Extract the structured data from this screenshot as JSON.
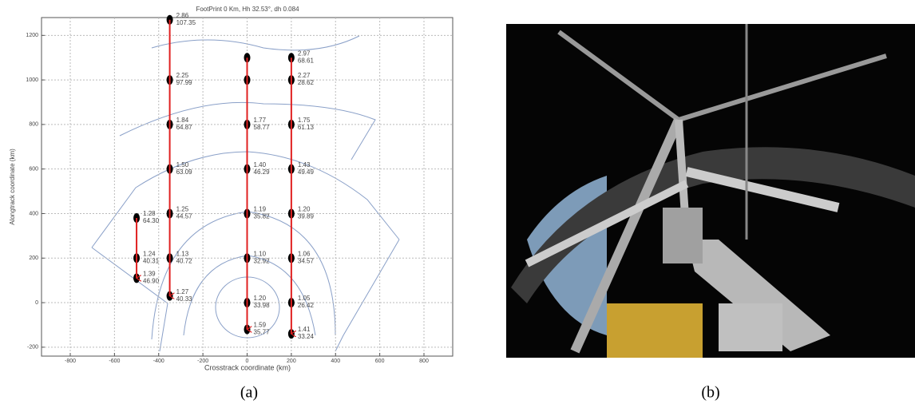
{
  "chart_data": {
    "type": "scatter",
    "title": "FootPrint 0 Km, Hh 32.53°, dh 0.084",
    "x_label": "Crosstrack coordinate (km)",
    "y_label": "Alongtrack coordinate (km)",
    "xlim": [
      -930,
      930
    ],
    "ylim": [
      -240,
      1280
    ],
    "xticks": [
      -800,
      -600,
      -400,
      -200,
      0,
      200,
      400,
      600,
      800
    ],
    "yticks": [
      -200,
      0,
      200,
      400,
      600,
      800,
      1000,
      1200
    ],
    "grid": true,
    "color": "#000000",
    "arrow_color": "#e02020",
    "series": [
      {
        "x": [
          -500,
          -500,
          -500
        ],
        "values": [
          380,
          200,
          110
        ],
        "point_labels": [
          [
            "1.28",
            "64.30"
          ],
          [
            "1.24",
            "40.31"
          ],
          [
            "1.39",
            "46.90"
          ]
        ]
      },
      {
        "x": [
          -350,
          -350,
          -350,
          -350,
          -350,
          -350,
          -350
        ],
        "values": [
          1270,
          1000,
          800,
          600,
          400,
          200,
          30
        ],
        "point_labels": [
          [
            "2.86",
            "107.35"
          ],
          [
            "2.25",
            "97.99"
          ],
          [
            "1.84",
            "64.87"
          ],
          [
            "1.50",
            "63.09"
          ],
          [
            "1.25",
            "44.57"
          ],
          [
            "1.13",
            "40.72"
          ],
          [
            "1.27",
            "40.33"
          ]
        ]
      },
      {
        "x": [
          0,
          0,
          0,
          0,
          0,
          0,
          0,
          0
        ],
        "values": [
          1100,
          1000,
          800,
          600,
          400,
          200,
          0,
          -120
        ],
        "point_labels": [
          null,
          null,
          [
            "1.77",
            "58.77"
          ],
          [
            "1.40",
            "46.29"
          ],
          [
            "1.19",
            "35.82"
          ],
          [
            "1.10",
            "32.92"
          ],
          [
            "1.20",
            "33.98"
          ],
          [
            "1.59",
            "35.77"
          ]
        ]
      },
      {
        "x": [
          200,
          200,
          200,
          200,
          200,
          200,
          200,
          200
        ],
        "values": [
          1100,
          1000,
          800,
          600,
          400,
          200,
          0,
          -140
        ],
        "point_labels": [
          [
            "2.97",
            "68.61"
          ],
          [
            "2.27",
            "28.62"
          ],
          [
            "1.75",
            "61.13"
          ],
          [
            "1.43",
            "49.49"
          ],
          [
            "1.20",
            "39.89"
          ],
          [
            "1.06",
            "34.57"
          ],
          [
            "1.05",
            "26.42"
          ],
          [
            "1.41",
            "33.24"
          ]
        ]
      }
    ]
  },
  "captions": [
    "(a)",
    "(b)"
  ]
}
